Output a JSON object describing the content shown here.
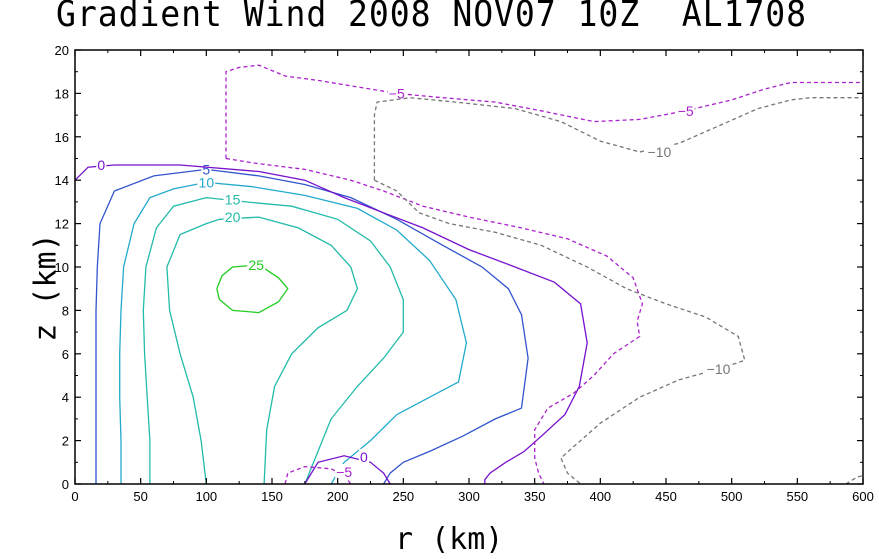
{
  "chart_data": {
    "type": "contour",
    "title": "Gradient Wind 2008 NOV07 10Z  AL1708",
    "xlabel": "r (km)",
    "ylabel": "z (km)",
    "xlim": [
      0,
      600
    ],
    "ylim": [
      0,
      20
    ],
    "x_ticks": [
      "0",
      "50",
      "100",
      "150",
      "200",
      "250",
      "300",
      "350",
      "400",
      "450",
      "500",
      "550",
      "600"
    ],
    "y_ticks": [
      "0",
      "2",
      "4",
      "6",
      "8",
      "10",
      "12",
      "14",
      "16",
      "18",
      "20"
    ],
    "grid": false,
    "contours": [
      {
        "level": "25",
        "label": "25",
        "color": "#22cc22",
        "dashed": false,
        "points": [
          [
            108,
            9.0
          ],
          [
            112,
            9.6
          ],
          [
            120,
            10.0
          ],
          [
            140,
            10.1
          ],
          [
            155,
            9.5
          ],
          [
            162,
            9.0
          ],
          [
            155,
            8.4
          ],
          [
            140,
            7.9
          ],
          [
            120,
            8.0
          ],
          [
            110,
            8.5
          ],
          [
            108,
            9.0
          ]
        ],
        "label_at": [
          138,
          10.1
        ]
      },
      {
        "level": "20",
        "label": "20",
        "color": "#22bbaa",
        "dashed": false,
        "points": [
          [
            100,
            0
          ],
          [
            96,
            2
          ],
          [
            90,
            4
          ],
          [
            80,
            6
          ],
          [
            72,
            8
          ],
          [
            70,
            10
          ],
          [
            80,
            11.5
          ],
          [
            100,
            12.0
          ],
          [
            110,
            12.2
          ],
          [
            140,
            12.3
          ],
          [
            170,
            11.8
          ],
          [
            195,
            11.0
          ],
          [
            210,
            10.0
          ],
          [
            215,
            9.0
          ],
          [
            207,
            8.0
          ],
          [
            185,
            7.2
          ],
          [
            165,
            6.0
          ],
          [
            152,
            4.5
          ],
          [
            146,
            2.5
          ],
          [
            144,
            0
          ]
        ],
        "label_at": [
          120,
          12.3
        ]
      },
      {
        "level": "15",
        "label": "15",
        "color": "#22bbaa",
        "dashed": false,
        "points": [
          [
            57,
            0
          ],
          [
            57,
            2
          ],
          [
            55,
            4
          ],
          [
            53,
            6
          ],
          [
            52,
            8
          ],
          [
            54,
            10
          ],
          [
            62,
            11.8
          ],
          [
            75,
            12.8
          ],
          [
            100,
            13.2
          ],
          [
            130,
            13.0
          ],
          [
            165,
            12.8
          ],
          [
            200,
            12.2
          ],
          [
            225,
            11.2
          ],
          [
            240,
            10.0
          ],
          [
            250,
            8.5
          ],
          [
            250,
            7.0
          ],
          [
            235,
            5.8
          ],
          [
            215,
            4.5
          ],
          [
            195,
            3.0
          ],
          [
            185,
            1.5
          ],
          [
            175,
            0
          ]
        ],
        "label_at": [
          120,
          13.1
        ]
      },
      {
        "level": "10",
        "label": "10",
        "color": "#22aacc",
        "dashed": false,
        "points": [
          [
            35,
            0
          ],
          [
            35,
            2
          ],
          [
            34,
            4
          ],
          [
            34,
            6
          ],
          [
            35,
            8
          ],
          [
            37,
            10
          ],
          [
            45,
            12
          ],
          [
            57,
            13.2
          ],
          [
            75,
            13.6
          ],
          [
            100,
            13.9
          ],
          [
            135,
            13.7
          ],
          [
            175,
            13.3
          ],
          [
            215,
            12.7
          ],
          [
            245,
            11.7
          ],
          [
            270,
            10.3
          ],
          [
            290,
            8.5
          ],
          [
            298,
            6.5
          ],
          [
            292,
            4.7
          ],
          [
            270,
            4.0
          ],
          [
            245,
            3.2
          ],
          [
            225,
            2.0
          ],
          [
            205,
            1.0
          ],
          [
            195,
            0
          ]
        ],
        "label_at": [
          100,
          13.9
        ]
      },
      {
        "level": "5",
        "label": "5",
        "color": "#3355cc",
        "dashed": false,
        "points": [
          [
            16,
            0
          ],
          [
            16,
            2
          ],
          [
            16,
            4
          ],
          [
            16,
            6
          ],
          [
            16,
            8
          ],
          [
            17,
            10
          ],
          [
            19,
            12
          ],
          [
            30,
            13.5
          ],
          [
            60,
            14.2
          ],
          [
            100,
            14.5
          ],
          [
            140,
            14.2
          ],
          [
            175,
            13.8
          ],
          [
            210,
            13.2
          ],
          [
            245,
            12.2
          ],
          [
            280,
            11.0
          ],
          [
            310,
            10.0
          ],
          [
            330,
            9.0
          ],
          [
            340,
            7.8
          ],
          [
            345,
            5.8
          ],
          [
            340,
            3.5
          ],
          [
            320,
            3.0
          ],
          [
            295,
            2.2
          ],
          [
            270,
            1.5
          ],
          [
            250,
            1.0
          ],
          [
            240,
            0.5
          ],
          [
            235,
            0
          ]
        ],
        "label_at": [
          100,
          14.5
        ]
      },
      {
        "level": "0",
        "label": "0",
        "color": "#7711cc",
        "dashed": false,
        "points": [
          [
            0,
            14.0
          ],
          [
            10,
            14.6
          ],
          [
            30,
            14.7
          ],
          [
            80,
            14.7
          ],
          [
            140,
            14.4
          ],
          [
            175,
            14.0
          ],
          [
            205,
            13.2
          ],
          [
            235,
            12.5
          ],
          [
            265,
            11.8
          ],
          [
            300,
            10.8
          ],
          [
            335,
            10.0
          ],
          [
            365,
            9.3
          ],
          [
            385,
            8.3
          ],
          [
            390,
            6.5
          ],
          [
            384,
            4.5
          ],
          [
            373,
            3.2
          ],
          [
            355,
            2.2
          ],
          [
            342,
            1.5
          ],
          [
            328,
            1.0
          ],
          [
            316,
            0.5
          ],
          [
            312,
            0.2
          ],
          [
            312,
            0
          ]
        ],
        "label_at": [
          20,
          14.7
        ]
      },
      {
        "level": "0",
        "label": "0",
        "color": "#7711cc",
        "dashed": false,
        "points": [
          [
            175,
            0
          ],
          [
            185,
            1.0
          ],
          [
            205,
            1.3
          ],
          [
            225,
            1.0
          ],
          [
            235,
            0.5
          ],
          [
            240,
            0
          ]
        ],
        "label_at": [
          220,
          1.25
        ]
      },
      {
        "level": "-5",
        "label": "−5",
        "color": "#aa22cc",
        "dashed": true,
        "points": [
          [
            160,
            0
          ],
          [
            162,
            0.5
          ],
          [
            175,
            0.8
          ],
          [
            195,
            0.7
          ],
          [
            205,
            0.4
          ],
          [
            210,
            0
          ]
        ],
        "label_at": [
          205,
          0.55
        ]
      },
      {
        "level": "-5",
        "label": "−5",
        "color": "#aa22cc",
        "dashed": true,
        "points": [
          [
            115,
            15.0
          ],
          [
            115,
            17.0
          ],
          [
            115,
            19.0
          ],
          [
            125,
            19.2
          ],
          [
            140,
            19.3
          ],
          [
            160,
            18.8
          ],
          [
            185,
            18.6
          ],
          [
            215,
            18.3
          ],
          [
            245,
            18.0
          ],
          [
            280,
            17.8
          ],
          [
            320,
            17.6
          ],
          [
            355,
            17.2
          ],
          [
            395,
            16.7
          ],
          [
            430,
            16.8
          ],
          [
            465,
            17.2
          ],
          [
            500,
            17.7
          ],
          [
            525,
            18.2
          ],
          [
            545,
            18.5
          ],
          [
            560,
            18.5
          ],
          [
            600,
            18.5
          ]
        ],
        "label_at": [
          245,
          18.0
        ]
      },
      {
        "level": "-5",
        "label": "−5",
        "color": "#aa22cc",
        "dashed": true,
        "points": [
          [
            115,
            15.0
          ],
          [
            135,
            14.8
          ],
          [
            175,
            14.5
          ],
          [
            210,
            14.0
          ],
          [
            235,
            13.5
          ],
          [
            265,
            12.8
          ],
          [
            300,
            12.3
          ],
          [
            340,
            11.8
          ],
          [
            375,
            11.3
          ],
          [
            405,
            10.5
          ],
          [
            425,
            9.5
          ],
          [
            432,
            8.3
          ],
          [
            428,
            7.5
          ],
          [
            430,
            6.8
          ],
          [
            410,
            6.0
          ],
          [
            395,
            5.0
          ],
          [
            380,
            4.2
          ],
          [
            360,
            3.5
          ],
          [
            350,
            2.5
          ],
          [
            350,
            1.2
          ],
          [
            353,
            0.5
          ],
          [
            357,
            0
          ]
        ],
        "label_at": [
          465,
          17.2
        ]
      },
      {
        "level": "-10",
        "label": "−10",
        "color": "#777777",
        "dashed": true,
        "points": [
          [
            228,
            14.0
          ],
          [
            228,
            15.8
          ],
          [
            228,
            17.0
          ],
          [
            230,
            17.6
          ],
          [
            255,
            17.8
          ],
          [
            290,
            17.6
          ],
          [
            335,
            17.3
          ],
          [
            370,
            16.7
          ],
          [
            400,
            15.8
          ],
          [
            430,
            15.3
          ],
          [
            460,
            15.7
          ],
          [
            490,
            16.5
          ],
          [
            520,
            17.3
          ],
          [
            545,
            17.7
          ],
          [
            560,
            17.8
          ],
          [
            600,
            17.8
          ]
        ],
        "label_at": [
          445,
          15.3
        ]
      },
      {
        "level": "-10",
        "label": "−10",
        "color": "#777777",
        "dashed": true,
        "points": [
          [
            228,
            14.0
          ],
          [
            245,
            13.5
          ],
          [
            262,
            12.5
          ],
          [
            285,
            12.0
          ],
          [
            320,
            11.6
          ],
          [
            355,
            11.0
          ],
          [
            390,
            10.0
          ],
          [
            420,
            9.0
          ],
          [
            450,
            8.3
          ],
          [
            480,
            7.7
          ],
          [
            505,
            6.8
          ],
          [
            510,
            5.7
          ],
          [
            490,
            5.3
          ],
          [
            460,
            4.8
          ],
          [
            430,
            4.0
          ],
          [
            400,
            2.8
          ],
          [
            385,
            2.0
          ],
          [
            370,
            1.2
          ],
          [
            375,
            0.5
          ],
          [
            385,
            0
          ]
        ],
        "label_at": [
          490,
          5.3
        ]
      },
      {
        "level": "-10",
        "label": "",
        "color": "#777777",
        "dashed": true,
        "points": [
          [
            587,
            0
          ],
          [
            595,
            0.3
          ],
          [
            600,
            0.4
          ]
        ],
        "label_at": null
      }
    ]
  }
}
